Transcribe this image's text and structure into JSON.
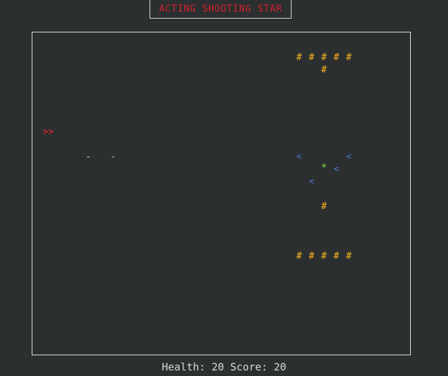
{
  "title": "ACTING SHOOTING STAR",
  "glyphs": {
    "wall": "#",
    "enemy": "<",
    "star": "*",
    "player": ">>",
    "bullet": "-"
  },
  "status": {
    "health_label": "Health:",
    "health_value": "20",
    "score_label": "Score:",
    "score_value": "20"
  },
  "colors": {
    "background": "#2b2f30",
    "title": "#d0212e",
    "wall": "#d39a1c",
    "enemy": "#4a78c8",
    "star": "#6fba3a",
    "player": "#d0212e",
    "bullet": "#d9d9d9"
  }
}
